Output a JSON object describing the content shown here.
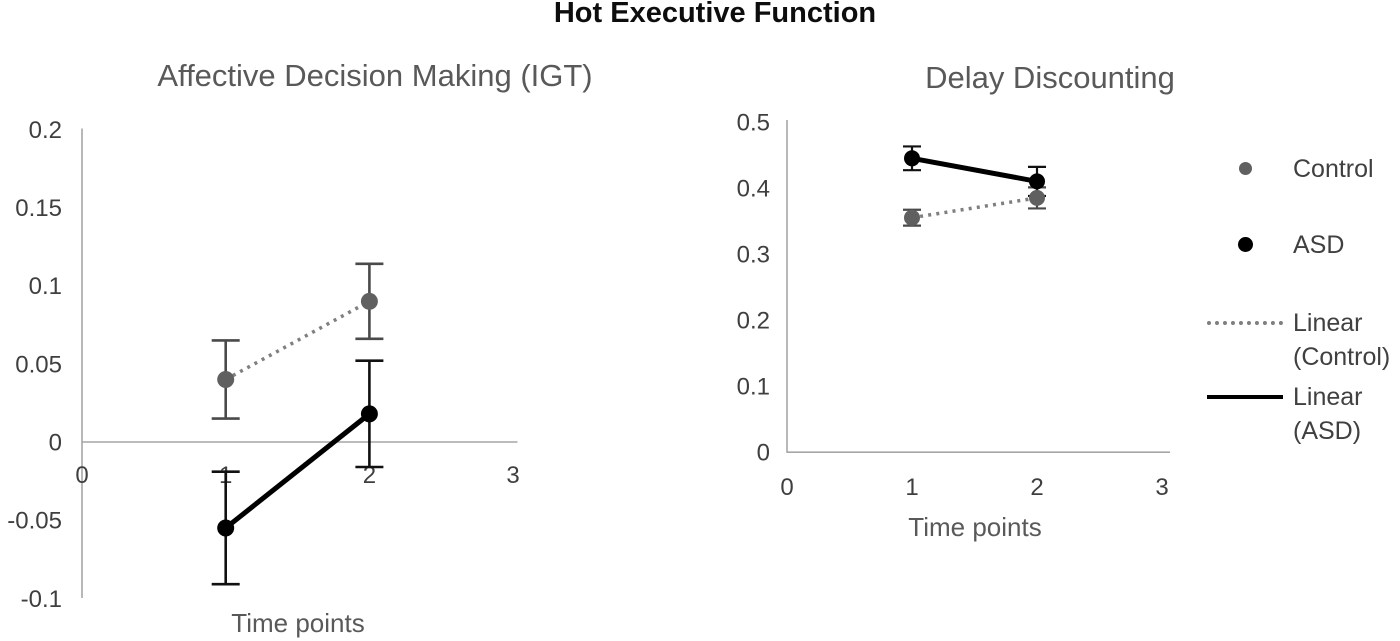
{
  "figure": {
    "title": "Hot Executive Function"
  },
  "legend": {
    "position": "right-outside",
    "items": [
      {
        "lines": [
          "Control"
        ],
        "marker": "dot",
        "color": "#606060"
      },
      {
        "lines": [
          "ASD"
        ],
        "marker": "dot",
        "color": "#000000"
      },
      {
        "lines": [
          "Linear",
          "(Control)"
        ],
        "marker": "dotted-line",
        "color": "#7f7f7f"
      },
      {
        "lines": [
          "Linear",
          "(ASD)"
        ],
        "marker": "solid-line",
        "color": "#000000"
      }
    ]
  },
  "chart_data": [
    {
      "type": "line",
      "title": "Affective Decision Making (IGT)",
      "xlabel": "Time points",
      "ylabel": "",
      "x": [
        1,
        2
      ],
      "xlim": [
        0,
        3
      ],
      "ylim": [
        -0.1,
        0.2
      ],
      "x_ticks": [
        0,
        1,
        2,
        3
      ],
      "x_tick_labels": [
        "0",
        "1",
        "2",
        "3"
      ],
      "y_ticks": [
        0.2,
        0.15,
        0.1,
        0.05,
        0,
        -0.05,
        -0.1
      ],
      "y_tick_labels": [
        "0.2",
        "0.15",
        "0.1",
        "0.05",
        "0",
        "-0.05",
        "-0.1"
      ],
      "grid": false,
      "axis_color": "#a6a6a6",
      "tick_color": "#3f3f3f",
      "series": [
        {
          "name": "Control",
          "values": [
            0.04,
            0.09
          ],
          "errors": [
            0.025,
            0.024
          ],
          "line_style": "dotted",
          "line_color": "#7f7f7f",
          "marker_color": "#606060",
          "error_color": "#4a4a4a"
        },
        {
          "name": "ASD",
          "values": [
            -0.055,
            0.018
          ],
          "errors": [
            0.036,
            0.034
          ],
          "line_style": "solid",
          "line_color": "#000000",
          "marker_color": "#000000",
          "error_color": "#111111"
        }
      ]
    },
    {
      "type": "line",
      "title": "Delay Discounting",
      "xlabel": "Time points",
      "ylabel": "",
      "x": [
        1,
        2
      ],
      "xlim": [
        0,
        3
      ],
      "ylim": [
        0,
        0.5
      ],
      "x_ticks": [
        0,
        1,
        2,
        3
      ],
      "x_tick_labels": [
        "0",
        "1",
        "2",
        "3"
      ],
      "y_ticks": [
        0.5,
        0.4,
        0.3,
        0.2,
        0.1,
        0
      ],
      "y_tick_labels": [
        "0.5",
        "0.4",
        "0.3",
        "0.2",
        "0.1",
        "0"
      ],
      "grid": false,
      "axis_color": "#a6a6a6",
      "tick_color": "#3f3f3f",
      "series": [
        {
          "name": "Control",
          "values": [
            0.355,
            0.385
          ],
          "errors": [
            0.012,
            0.016
          ],
          "line_style": "dotted",
          "line_color": "#7f7f7f",
          "marker_color": "#606060",
          "error_color": "#4a4a4a"
        },
        {
          "name": "ASD",
          "values": [
            0.445,
            0.41
          ],
          "errors": [
            0.018,
            0.022
          ],
          "line_style": "solid",
          "line_color": "#000000",
          "marker_color": "#000000",
          "error_color": "#111111"
        }
      ]
    }
  ]
}
